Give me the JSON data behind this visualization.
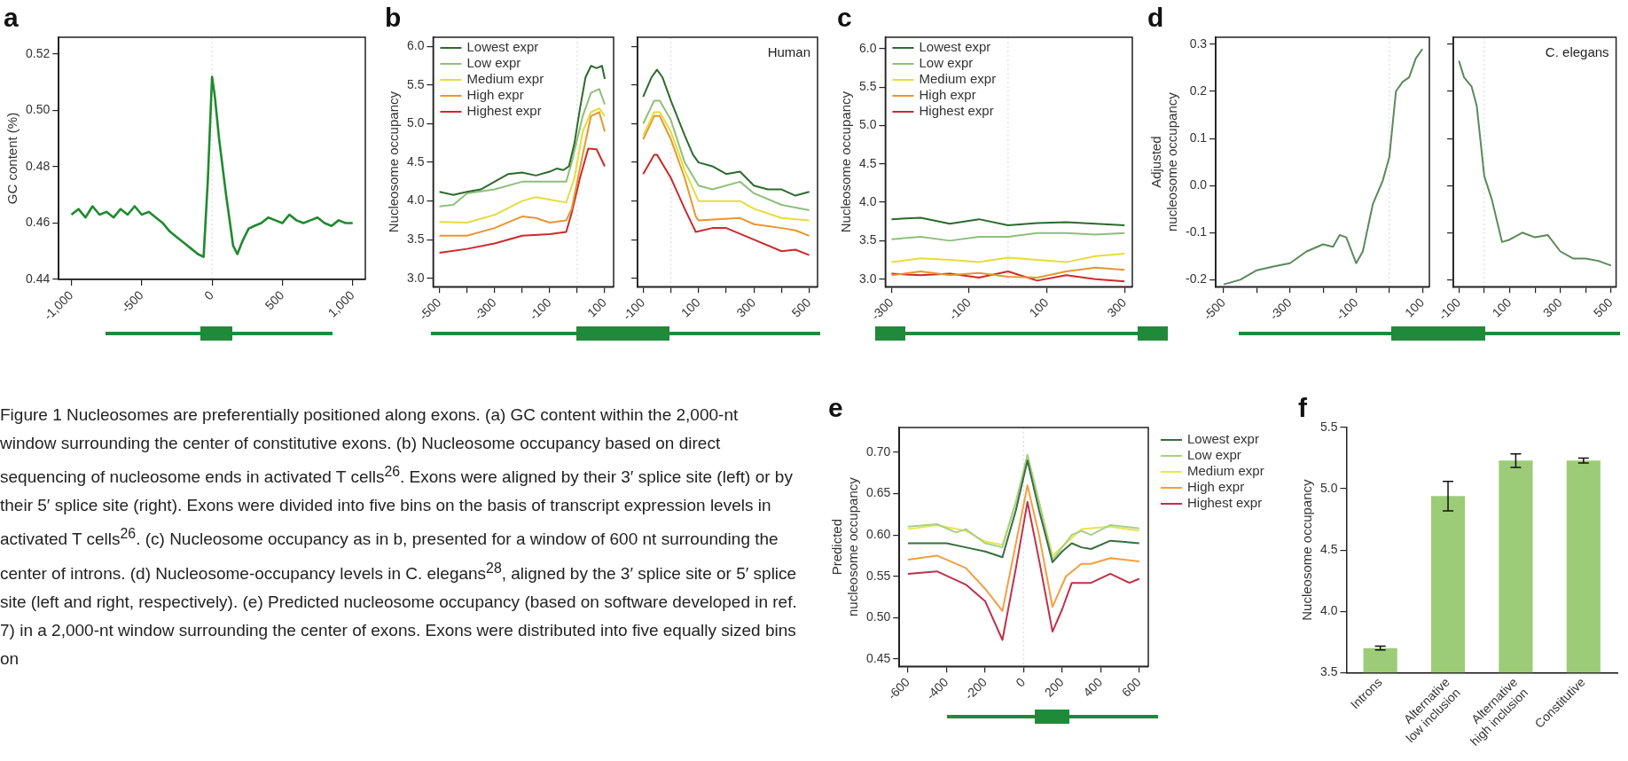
{
  "chart_data": [
    {
      "type": "line",
      "title": "a",
      "ylabel": "GC content (%)",
      "marker": "none",
      "line_style": "solid",
      "grid": false,
      "xlim": [
        -1090,
        1090
      ],
      "ylim": [
        0.44,
        0.526
      ],
      "xticks": [
        {
          "value": -1000,
          "label": "-1,000"
        },
        -500,
        0,
        500,
        {
          "value": 1000,
          "label": "1,000"
        }
      ],
      "yticks": [
        0.44,
        0.46,
        0.48,
        {
          "value": 0.5,
          "label": "0.50"
        },
        0.52
      ],
      "ref_lines": [
        {
          "axis": "x",
          "value": 0,
          "color": "#dddddd",
          "line_style": "dotted"
        }
      ],
      "x": [
        -1000,
        -950,
        -900,
        -850,
        -800,
        -750,
        -700,
        -650,
        -600,
        -550,
        -500,
        -450,
        -400,
        -350,
        -300,
        -250,
        -200,
        -150,
        -100,
        -60,
        -30,
        0,
        20,
        50,
        100,
        150,
        180,
        220,
        260,
        300,
        350,
        400,
        450,
        500,
        550,
        600,
        650,
        700,
        750,
        800,
        850,
        900,
        950,
        1000
      ],
      "series": [
        {
          "color": "#1f8a2e",
          "values": [
            0.463,
            0.465,
            0.462,
            0.466,
            0.463,
            0.464,
            0.462,
            0.465,
            0.463,
            0.466,
            0.463,
            0.464,
            0.462,
            0.46,
            0.457,
            0.455,
            0.453,
            0.451,
            0.449,
            0.448,
            0.475,
            0.512,
            0.505,
            0.49,
            0.47,
            0.452,
            0.449,
            0.454,
            0.458,
            0.459,
            0.46,
            0.462,
            0.461,
            0.46,
            0.463,
            0.461,
            0.46,
            0.461,
            0.462,
            0.46,
            0.459,
            0.461,
            0.46,
            0.46
          ]
        }
      ]
    },
    {
      "type": "line",
      "title": "b",
      "ylabel": "Nucleosome occupancy",
      "marker": "none",
      "line_style": "solid",
      "grid": false,
      "legend": "top left",
      "xlim": [
        -523,
        132
      ],
      "ylim": [
        2.89,
        6.12
      ],
      "xticks": [
        -500,
        {
          "value": -400,
          "label": null
        },
        -300,
        {
          "value": -200,
          "label": null
        },
        -100,
        {
          "value": 0,
          "label": null
        },
        100
      ],
      "yticks": [
        {
          "value": 3,
          "label": "3.0"
        },
        3.5,
        {
          "value": 4,
          "label": "4.0"
        },
        4.5,
        {
          "value": 5,
          "label": "5.0"
        },
        5.5,
        {
          "value": 6,
          "label": "6.0"
        }
      ],
      "ref_lines": [
        {
          "axis": "x",
          "value": 0,
          "color": "#dddddd",
          "line_style": "dotted"
        }
      ],
      "series": [
        {
          "name": "Lowest expr",
          "color": "#2d6a2d",
          "x": [
            -500,
            -450,
            -400,
            -350,
            -300,
            -250,
            -200,
            -150,
            -100,
            -75,
            -50,
            -30,
            -10,
            10,
            30,
            50,
            70,
            90,
            100
          ],
          "values": [
            4.12,
            4.08,
            4.12,
            4.15,
            4.25,
            4.35,
            4.37,
            4.33,
            4.38,
            4.42,
            4.4,
            4.45,
            4.75,
            5.2,
            5.6,
            5.75,
            5.72,
            5.75,
            5.58
          ]
        },
        {
          "name": "Low expr",
          "color": "#8fbf7a",
          "x": [
            -500,
            -450,
            -400,
            -300,
            -200,
            -100,
            -40,
            -20,
            20,
            50,
            80,
            100
          ],
          "values": [
            3.93,
            3.95,
            4.1,
            4.15,
            4.25,
            4.25,
            4.25,
            4.5,
            5.1,
            5.4,
            5.45,
            5.25
          ]
        },
        {
          "name": "Medium expr",
          "color": "#e6dc3c",
          "x": [
            -500,
            -400,
            -300,
            -200,
            -150,
            -100,
            -40,
            -10,
            20,
            50,
            80,
            100
          ],
          "values": [
            3.73,
            3.72,
            3.82,
            4.0,
            4.05,
            4.02,
            3.98,
            4.3,
            4.9,
            5.15,
            5.2,
            5.1
          ]
        },
        {
          "name": "High expr",
          "color": "#e8962e",
          "x": [
            -500,
            -400,
            -300,
            -200,
            -150,
            -100,
            -40,
            -20,
            20,
            50,
            80,
            100
          ],
          "values": [
            3.55,
            3.55,
            3.65,
            3.8,
            3.78,
            3.72,
            3.75,
            3.9,
            4.6,
            5.1,
            5.15,
            4.9
          ]
        },
        {
          "name": "Highest expr",
          "color": "#cc2a2a",
          "x": [
            -500,
            -400,
            -300,
            -200,
            -100,
            -40,
            -20,
            10,
            40,
            70,
            100
          ],
          "values": [
            3.33,
            3.38,
            3.45,
            3.55,
            3.57,
            3.6,
            3.85,
            4.3,
            4.68,
            4.67,
            4.45
          ]
        }
      ]
    },
    {
      "type": "line",
      "marker": "none",
      "line_style": "solid",
      "grid": false,
      "tick_labels": "x",
      "annotations": [
        "Human"
      ],
      "xlim": [
        -120,
        530
      ],
      "ylim": [
        2.89,
        6.12
      ],
      "xticks": [
        -100,
        {
          "value": 0,
          "label": null
        },
        100,
        {
          "value": 200,
          "label": null
        },
        300,
        {
          "value": 400,
          "label": null
        },
        500
      ],
      "yticks": [
        {
          "value": 3,
          "label": null
        },
        {
          "value": 3.5,
          "label": null
        },
        {
          "value": 4,
          "label": null
        },
        {
          "value": 4.5,
          "label": null
        },
        {
          "value": 5,
          "label": null
        },
        {
          "value": 5.5,
          "label": null
        },
        {
          "value": 6,
          "label": null
        }
      ],
      "ref_lines": [
        {
          "axis": "x",
          "value": 0,
          "color": "#dddddd",
          "line_style": "dotted"
        }
      ],
      "series": [
        {
          "color": "#2d6a2d",
          "x": [
            -100,
            -70,
            -50,
            -30,
            0,
            50,
            80,
            100,
            150,
            200,
            250,
            300,
            350,
            400,
            450,
            500
          ],
          "values": [
            5.35,
            5.6,
            5.7,
            5.6,
            5.3,
            4.85,
            4.6,
            4.5,
            4.45,
            4.35,
            4.38,
            4.2,
            4.15,
            4.15,
            4.07,
            4.12
          ]
        },
        {
          "color": "#8fbf7a",
          "x": [
            -100,
            -60,
            -40,
            0,
            50,
            100,
            150,
            250,
            300,
            400,
            500
          ],
          "values": [
            5.0,
            5.3,
            5.3,
            5.05,
            4.5,
            4.2,
            4.15,
            4.25,
            4.1,
            3.95,
            3.88
          ]
        },
        {
          "color": "#e6dc3c",
          "x": [
            -100,
            -60,
            -40,
            0,
            50,
            100,
            200,
            250,
            300,
            400,
            500
          ],
          "values": [
            4.85,
            5.15,
            5.15,
            4.9,
            4.4,
            4.0,
            4.0,
            4.0,
            3.9,
            3.78,
            3.75
          ]
        },
        {
          "color": "#e8962e",
          "x": [
            -100,
            -60,
            -40,
            0,
            50,
            90,
            100,
            250,
            300,
            400,
            450,
            500
          ],
          "values": [
            4.8,
            5.1,
            5.1,
            4.8,
            4.3,
            3.8,
            3.75,
            3.78,
            3.7,
            3.65,
            3.62,
            3.55
          ]
        },
        {
          "color": "#cc2a2a",
          "x": [
            -100,
            -60,
            -50,
            0,
            50,
            90,
            150,
            200,
            300,
            400,
            450,
            500
          ],
          "values": [
            4.35,
            4.6,
            4.6,
            4.3,
            3.9,
            3.6,
            3.65,
            3.65,
            3.5,
            3.35,
            3.37,
            3.3
          ]
        }
      ]
    },
    {
      "type": "line",
      "title": "c",
      "ylabel": "Nucleosome occupancy",
      "marker": "none",
      "line_style": "solid",
      "grid": false,
      "legend": "top left",
      "xlim": [
        -316,
        320
      ],
      "ylim": [
        2.9,
        6.15
      ],
      "xticks": [
        -300,
        -100,
        100,
        300
      ],
      "yticks": [
        {
          "value": 3,
          "label": "3.0"
        },
        3.5,
        {
          "value": 4,
          "label": "4.0"
        },
        4.5,
        {
          "value": 5,
          "label": "5.0"
        },
        5.5,
        {
          "value": 6,
          "label": "6.0"
        }
      ],
      "ref_lines": [
        {
          "axis": "x",
          "value": 0,
          "color": "#dddddd",
          "line_style": "dotted"
        }
      ],
      "x": [
        -300,
        -225,
        -150,
        -75,
        0,
        75,
        150,
        225,
        300
      ],
      "series": [
        {
          "name": "Lowest expr",
          "color": "#2d6a2d",
          "values": [
            3.78,
            3.8,
            3.72,
            3.78,
            3.7,
            3.73,
            3.74,
            3.72,
            3.7
          ]
        },
        {
          "name": "Low expr",
          "color": "#8fbf7a",
          "values": [
            3.52,
            3.55,
            3.5,
            3.55,
            3.55,
            3.6,
            3.6,
            3.58,
            3.6
          ]
        },
        {
          "name": "Medium expr",
          "color": "#e6dc3c",
          "values": [
            3.22,
            3.27,
            3.25,
            3.22,
            3.28,
            3.25,
            3.22,
            3.3,
            3.33
          ]
        },
        {
          "name": "High expr",
          "color": "#e8962e",
          "values": [
            3.05,
            3.1,
            3.05,
            3.08,
            3.03,
            3.02,
            3.1,
            3.15,
            3.12
          ]
        },
        {
          "name": "Highest expr",
          "color": "#cc2a2a",
          "values": [
            3.07,
            3.05,
            3.07,
            3.02,
            3.1,
            2.98,
            3.05,
            3.0,
            2.97
          ]
        }
      ]
    },
    {
      "type": "line",
      "title": "d",
      "ylabel": "Adjusted\nnucleosome occupancy",
      "marker": "none",
      "line_style": "solid",
      "grid": false,
      "xlim": [
        -524,
        121
      ],
      "ylim": [
        -0.215,
        0.315
      ],
      "xticks": [
        -500,
        {
          "value": -400,
          "label": null
        },
        -300,
        {
          "value": -200,
          "label": null
        },
        -100,
        {
          "value": 0,
          "label": null
        },
        100
      ],
      "yticks": [
        -0.2,
        -0.1,
        {
          "value": 0,
          "label": "0.0"
        },
        0.1,
        0.2,
        0.3
      ],
      "ref_lines": [
        {
          "axis": "x",
          "value": 0,
          "color": "#dddddd",
          "line_style": "dotted"
        }
      ],
      "x": [
        -500,
        -450,
        -400,
        -350,
        -300,
        -250,
        -200,
        -170,
        -150,
        -130,
        -100,
        -80,
        -50,
        -20,
        0,
        20,
        40,
        60,
        80,
        100
      ],
      "series": [
        {
          "color": "#5a8a5a",
          "values": [
            -0.21,
            -0.2,
            -0.18,
            -0.172,
            -0.165,
            -0.14,
            -0.125,
            -0.13,
            -0.105,
            -0.11,
            -0.165,
            -0.14,
            -0.04,
            0.01,
            0.06,
            0.2,
            0.22,
            0.23,
            0.27,
            0.29
          ]
        }
      ]
    },
    {
      "type": "line",
      "marker": "none",
      "line_style": "solid",
      "grid": false,
      "tick_labels": "x",
      "annotations": [
        "C. elegans"
      ],
      "xlim": [
        -122,
        520
      ],
      "ylim": [
        -0.215,
        0.315
      ],
      "xticks": [
        -100,
        {
          "value": 0,
          "label": null
        },
        100,
        {
          "value": 200,
          "label": null
        },
        300,
        {
          "value": 400,
          "label": null
        },
        500
      ],
      "yticks": [
        {
          "value": -0.2,
          "label": null
        },
        {
          "value": -0.1,
          "label": null
        },
        {
          "value": 0,
          "label": null
        },
        {
          "value": 0.1,
          "label": null
        },
        {
          "value": 0.2,
          "label": null
        },
        {
          "value": 0.3,
          "label": null
        }
      ],
      "ref_lines": [
        {
          "axis": "x",
          "value": 0,
          "color": "#dddddd",
          "line_style": "dotted"
        }
      ],
      "x": [
        -100,
        -80,
        -50,
        -30,
        0,
        30,
        70,
        100,
        150,
        200,
        250,
        300,
        350,
        400,
        450,
        500
      ],
      "series": [
        {
          "color": "#5a8a5a",
          "values": [
            0.265,
            0.23,
            0.21,
            0.17,
            0.02,
            -0.03,
            -0.12,
            -0.115,
            -0.1,
            -0.11,
            -0.105,
            -0.14,
            -0.155,
            -0.155,
            -0.16,
            -0.17
          ]
        }
      ]
    },
    {
      "type": "other",
      "annotations": [
        "Figure 1  Nucleosomes are preferentially positioned along exons. (a) GC content within the 2,000-nt window surrounding the center of constitutive exons. (b) Nucleosome occupancy based on direct sequencing of nucleosome ends in activated T cells$^{26}$. Exons were aligned by their 3′ splice site (left) or by their 5′ splice site (right). Exons were divided into five bins on the basis of transcript expression levels in activated T cells$^{26}$. (c) Nucleosome occupancy as in b, presented for a window of 600 nt surrounding the center of introns. (d) Nucleosome-occupancy levels in C. elegans$^{28}$, aligned by the 3′ splice site or 5′ splice site (left and right, respectively). (e) Predicted nucleosome occupancy (based on software developed in ref. 7) in a 2,000-nt window surrounding the center of exons. Exons were distributed into five equally sized bins on"
      ]
    },
    {
      "type": "line",
      "title": "e",
      "ylabel": "Predicted\nnucleosome occupancy",
      "marker": "none",
      "line_style": "solid",
      "grid": false,
      "legend": "right",
      "xlim": [
        -645,
        647
      ],
      "ylim": [
        0.441,
        0.73
      ],
      "xticks": [
        -600,
        -400,
        -200,
        0,
        200,
        400,
        600
      ],
      "yticks": [
        0.45,
        {
          "value": 0.5,
          "label": "0.50"
        },
        0.55,
        {
          "value": 0.6,
          "label": "0.60"
        },
        0.65,
        {
          "value": 0.7,
          "label": "0.70"
        }
      ],
      "ref_lines": [
        {
          "axis": "x",
          "value": 0,
          "color": "#dddddd",
          "line_style": "dotted"
        }
      ],
      "series": [
        {
          "name": "Lowest expr",
          "color": "#3a6e40",
          "x": [
            -600,
            -400,
            -300,
            -200,
            -110,
            -40,
            20,
            80,
            150,
            200,
            250,
            300,
            350,
            450,
            600
          ],
          "values": [
            0.59,
            0.59,
            0.585,
            0.58,
            0.573,
            0.63,
            0.69,
            0.63,
            0.567,
            0.58,
            0.59,
            0.585,
            0.583,
            0.593,
            0.59
          ]
        },
        {
          "name": "Low expr",
          "color": "#a6d08a",
          "x": [
            -600,
            -450,
            -350,
            -300,
            -200,
            -110,
            -40,
            20,
            80,
            150,
            250,
            300,
            350,
            450,
            600
          ],
          "values": [
            0.61,
            0.613,
            0.603,
            0.607,
            0.59,
            0.585,
            0.64,
            0.697,
            0.64,
            0.57,
            0.6,
            0.605,
            0.6,
            0.612,
            0.608
          ]
        },
        {
          "name": "Medium expr",
          "color": "#e6e650",
          "x": [
            -600,
            -450,
            -300,
            -200,
            -110,
            -40,
            20,
            80,
            150,
            300,
            450,
            600
          ],
          "values": [
            0.607,
            0.612,
            0.605,
            0.592,
            0.588,
            0.64,
            0.695,
            0.64,
            0.575,
            0.607,
            0.61,
            0.605
          ]
        },
        {
          "name": "High expr",
          "color": "#f0a040",
          "x": [
            -600,
            -450,
            -300,
            -200,
            -110,
            -40,
            20,
            80,
            150,
            220,
            300,
            350,
            450,
            600
          ],
          "values": [
            0.57,
            0.575,
            0.56,
            0.535,
            0.508,
            0.59,
            0.66,
            0.6,
            0.513,
            0.55,
            0.565,
            0.565,
            0.572,
            0.568
          ]
        },
        {
          "name": "Highest expr",
          "color": "#c0304a",
          "x": [
            -600,
            -450,
            -300,
            -200,
            -110,
            -40,
            20,
            80,
            150,
            200,
            250,
            350,
            450,
            550,
            600
          ],
          "values": [
            0.553,
            0.556,
            0.54,
            0.52,
            0.473,
            0.56,
            0.64,
            0.57,
            0.483,
            0.51,
            0.542,
            0.542,
            0.553,
            0.542,
            0.547
          ]
        }
      ]
    },
    {
      "type": "bar",
      "title": "f",
      "ylabel": "Nucleosome occupancy",
      "grid": false,
      "ylim": [
        3.5,
        5.5
      ],
      "yticks": [
        3.5,
        {
          "value": 4,
          "label": "4.0"
        },
        4.5,
        {
          "value": 5,
          "label": "5.0"
        },
        5.5
      ],
      "categories": [
        "Introns",
        "Alternative\nlow inclusion",
        "Alternative\nhigh inclusion",
        "Constitutive"
      ],
      "color": "#9ccc78",
      "values": [
        3.7,
        4.94,
        5.23,
        5.23
      ],
      "errors": [
        0.015,
        0.12,
        0.055,
        0.02
      ]
    }
  ]
}
